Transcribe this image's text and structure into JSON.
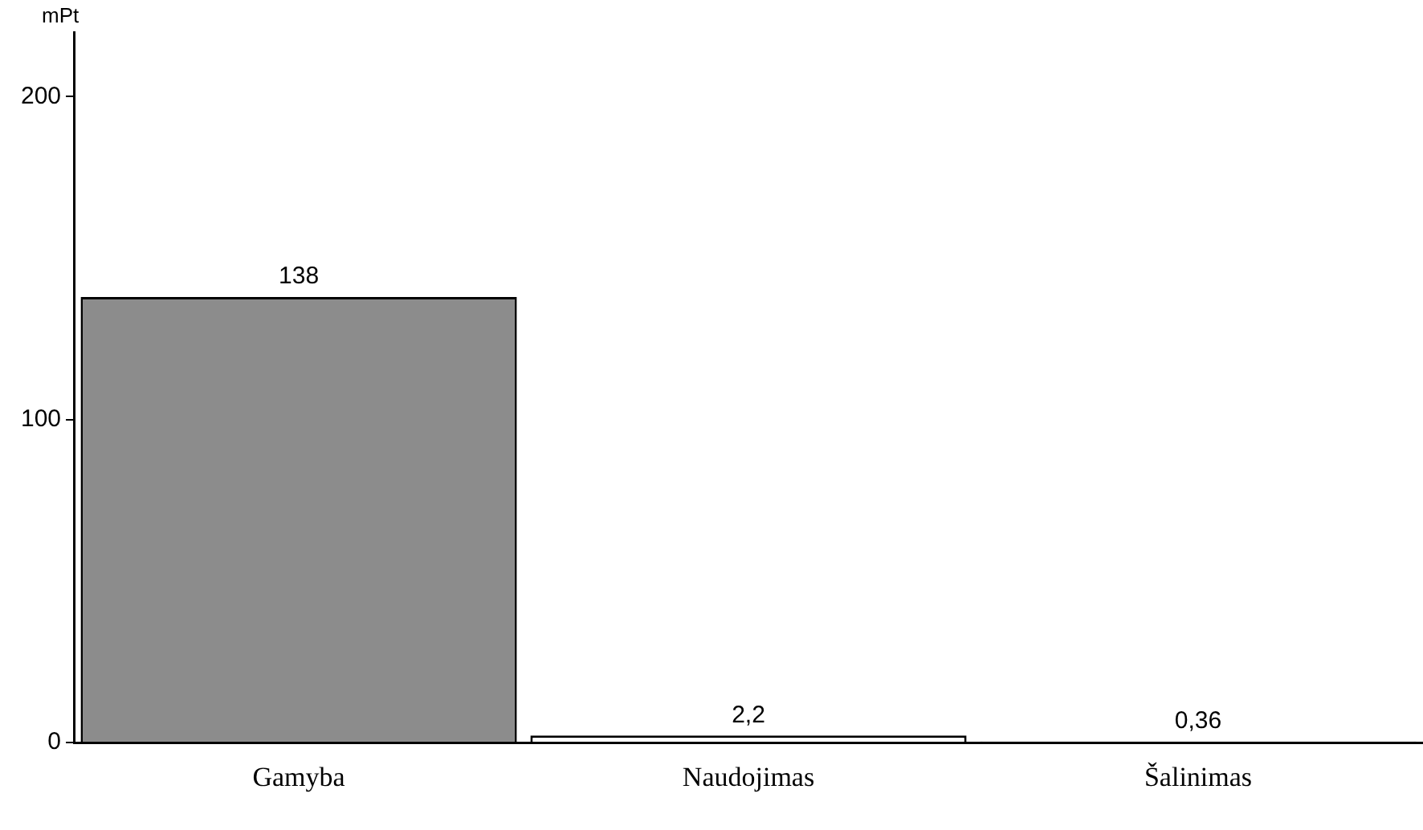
{
  "chart_data": {
    "type": "bar",
    "ylabel": "mPt",
    "categories": [
      "Gamyba",
      "Naudojimas",
      "Šalinimas"
    ],
    "values": [
      138,
      2.2,
      0.36
    ],
    "colors": [
      "#8c8c8c",
      "#ffffff",
      "#ffffff"
    ],
    "value_labels": [
      "138",
      "2,2",
      "0,36"
    ],
    "ylim": [
      0,
      220
    ],
    "yticks": [
      0,
      100,
      200
    ],
    "grid": false,
    "legend": false
  }
}
